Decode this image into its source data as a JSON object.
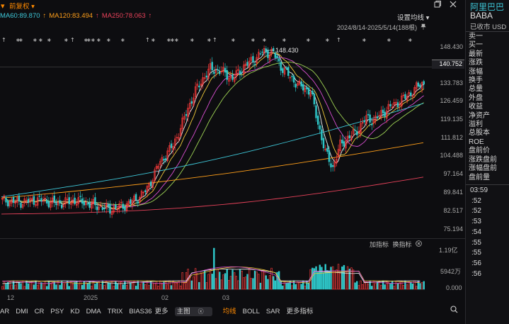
{
  "header": {
    "adjust_label": "前复权",
    "ma_settings_label": "设置均线",
    "date_range": "2024/8/14-2025/5/14(188根)",
    "ma_legend": [
      {
        "label": "MA60:89.870",
        "color": "#3ec7d8"
      },
      {
        "label": "MA120:83.494",
        "color": "#ff9f1a"
      },
      {
        "label": "MA250:78.063",
        "color": "#e8425a"
      }
    ]
  },
  "stock": {
    "name": "阿里巴巴",
    "ticker": "BABA",
    "status": "已收市 USD"
  },
  "price_axis": [
    "148.430",
    "140.752",
    "133.783",
    "126.459",
    "119.135",
    "111.812",
    "104.488",
    "97.164",
    "89.841",
    "82.517",
    "75.194"
  ],
  "current_price": "140.752",
  "peak_label": "148.430",
  "volume_axis": [
    "1.19亿",
    "5942万",
    "0.000"
  ],
  "volume_tools": {
    "add": "加指标",
    "switch": "换指标"
  },
  "x_axis": [
    "12",
    "2025",
    "02",
    "03"
  ],
  "indicator_tabs": [
    "AR",
    "DMI",
    "CR",
    "PSY",
    "KD",
    "DMA",
    "TRIX",
    "BIAS36",
    "更多",
    "主图",
    "均线",
    "BOLL",
    "SAR",
    "更多指标"
  ],
  "sidebar_menu": [
    "卖一",
    "买一",
    "最新",
    "涨跌",
    "涨幅",
    "换手",
    "总量",
    "外盘",
    "收益",
    "净资产",
    "溢利",
    "总股本",
    "ROE",
    "盘前价",
    "涨跌盘前",
    "涨幅盘前",
    "盘前量"
  ],
  "time_list": [
    "03:59",
    ":52",
    ":52",
    ":53",
    ":54",
    ":55",
    ":55",
    ":56",
    ":56"
  ],
  "colors": {
    "up": "#ff3b3b",
    "down": "#2ec7c9",
    "accent": "#ff8a00",
    "bg": "#0d0d10"
  },
  "icons": [
    "chevron-down-icon",
    "pin-icon",
    "restore-icon",
    "close-icon",
    "zoom-icon"
  ]
}
